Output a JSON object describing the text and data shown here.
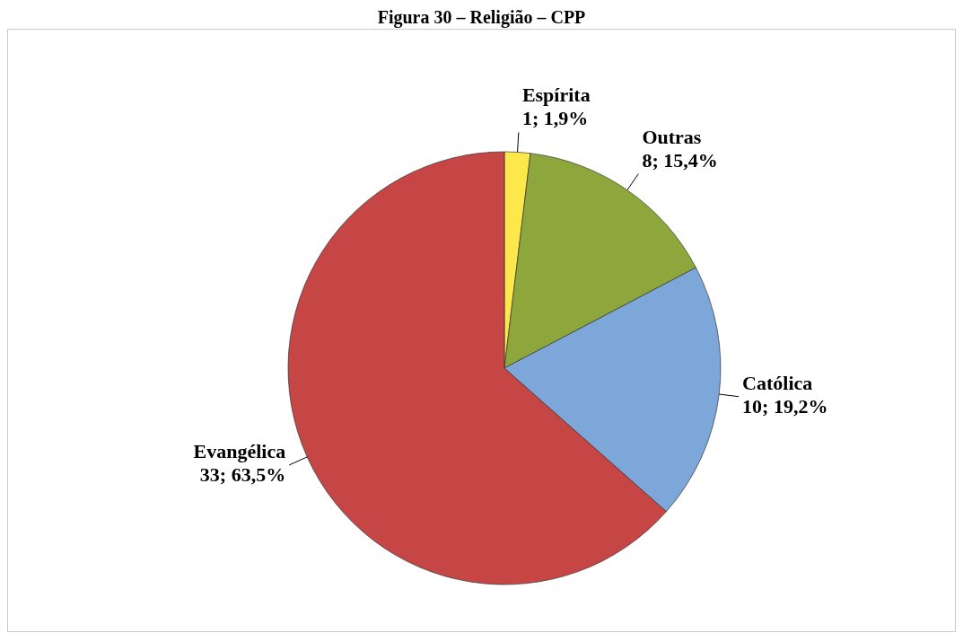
{
  "chart_data": {
    "type": "pie",
    "title": "Figura 30 – Religião – CPP",
    "categories": [
      "Espírita",
      "Outras",
      "Católica",
      "Evangélica"
    ],
    "values": [
      1,
      8,
      10,
      33
    ],
    "value_labels": [
      "1; 1,9%",
      "8; 15,4%",
      "10; 19,2%",
      "33; 63,5%"
    ],
    "colors": [
      "#fde84b",
      "#8ea73d",
      "#7da6d9",
      "#c64646"
    ],
    "legend": false
  }
}
